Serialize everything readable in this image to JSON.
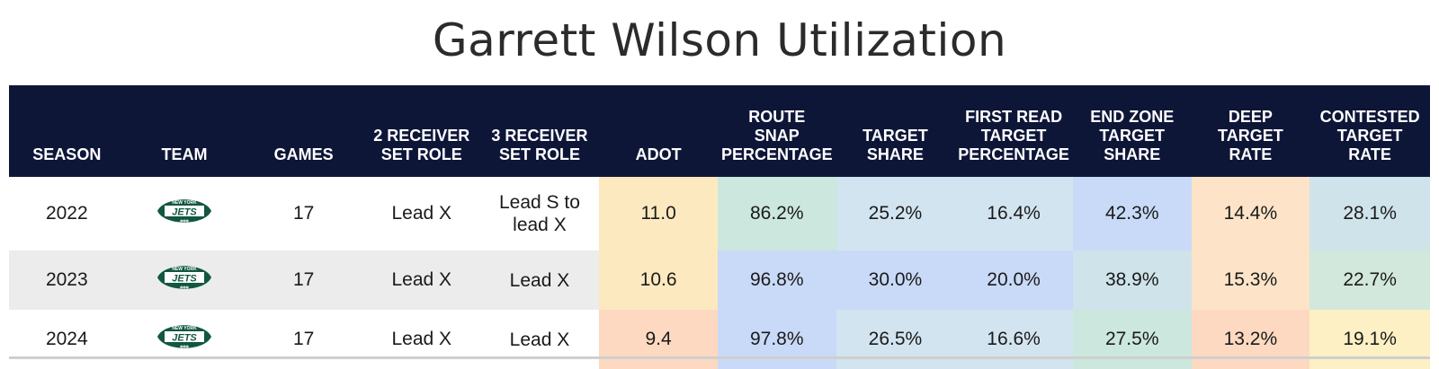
{
  "title": "Garrett Wilson Utilization",
  "columns": [
    "SEASON",
    "TEAM",
    "GAMES",
    "2 RECEIVER SET ROLE",
    "3 RECEIVER SET ROLE",
    "ADOT",
    "ROUTE SNAP PERCENTAGE",
    "TARGET SHARE",
    "FIRST READ TARGET PERCENTAGE",
    "END ZONE TARGET SHARE",
    "DEEP TARGET RATE",
    "CONTESTED TARGET RATE"
  ],
  "header_lines": [
    [
      "SEASON"
    ],
    [
      "TEAM"
    ],
    [
      "GAMES"
    ],
    [
      "2 RECEIVER",
      "SET ROLE"
    ],
    [
      "3 RECEIVER",
      "SET ROLE"
    ],
    [
      "ADOT"
    ],
    [
      "ROUTE",
      "SNAP",
      "PERCENTAGE"
    ],
    [
      "TARGET",
      "SHARE"
    ],
    [
      "FIRST READ",
      "TARGET",
      "PERCENTAGE"
    ],
    [
      "END ZONE",
      "TARGET",
      "SHARE"
    ],
    [
      "DEEP",
      "TARGET",
      "RATE"
    ],
    [
      "CONTESTED",
      "TARGET",
      "RATE"
    ]
  ],
  "team_logo": {
    "icon": "new-york-jets-logo",
    "text_top": "NEW YORK",
    "text_main": "JETS",
    "color": "#125740"
  },
  "rows": [
    {
      "season": "2022",
      "games": "17",
      "role_2wr": "Lead X",
      "role_3wr_lines": [
        "Lead S to",
        "lead X"
      ],
      "adot": "11.0",
      "route_snap_pct": "86.2%",
      "target_share": "25.2%",
      "first_read_pct": "16.4%",
      "end_zone_share": "42.3%",
      "deep_rate": "14.4%",
      "contested_rate": "28.1%"
    },
    {
      "season": "2023",
      "games": "17",
      "role_2wr": "Lead X",
      "role_3wr_lines": [
        "Lead X"
      ],
      "adot": "10.6",
      "route_snap_pct": "96.8%",
      "target_share": "30.0%",
      "first_read_pct": "20.0%",
      "end_zone_share": "38.9%",
      "deep_rate": "15.3%",
      "contested_rate": "22.7%"
    },
    {
      "season": "2024",
      "games": "17",
      "role_2wr": "Lead X",
      "role_3wr_lines": [
        "Lead X"
      ],
      "adot": "9.4",
      "route_snap_pct": "97.8%",
      "target_share": "26.5%",
      "first_read_pct": "16.6%",
      "end_zone_share": "27.5%",
      "deep_rate": "13.2%",
      "contested_rate": "19.1%"
    }
  ],
  "cell_colors": [
    [
      "#fde9bf",
      "#cbe7de",
      "#d2e4ef",
      "#d2e4ef",
      "#c9daf8",
      "#fde4c8",
      "#cfe3ea"
    ],
    [
      "#fde9bf",
      "#c9daf8",
      "#c9daf8",
      "#c9daf8",
      "#cfe3ea",
      "#fde4c8",
      "#d2e8dc"
    ],
    [
      "#fcd9c0",
      "#c9daf8",
      "#d2e4ef",
      "#d2e4ef",
      "#cbe7de",
      "#fcd9c0",
      "#fcf0c4"
    ]
  ],
  "colors": {
    "header_bg": "#0e1638",
    "header_text": "#ffffff",
    "alt_row_bg": "#ececec"
  }
}
